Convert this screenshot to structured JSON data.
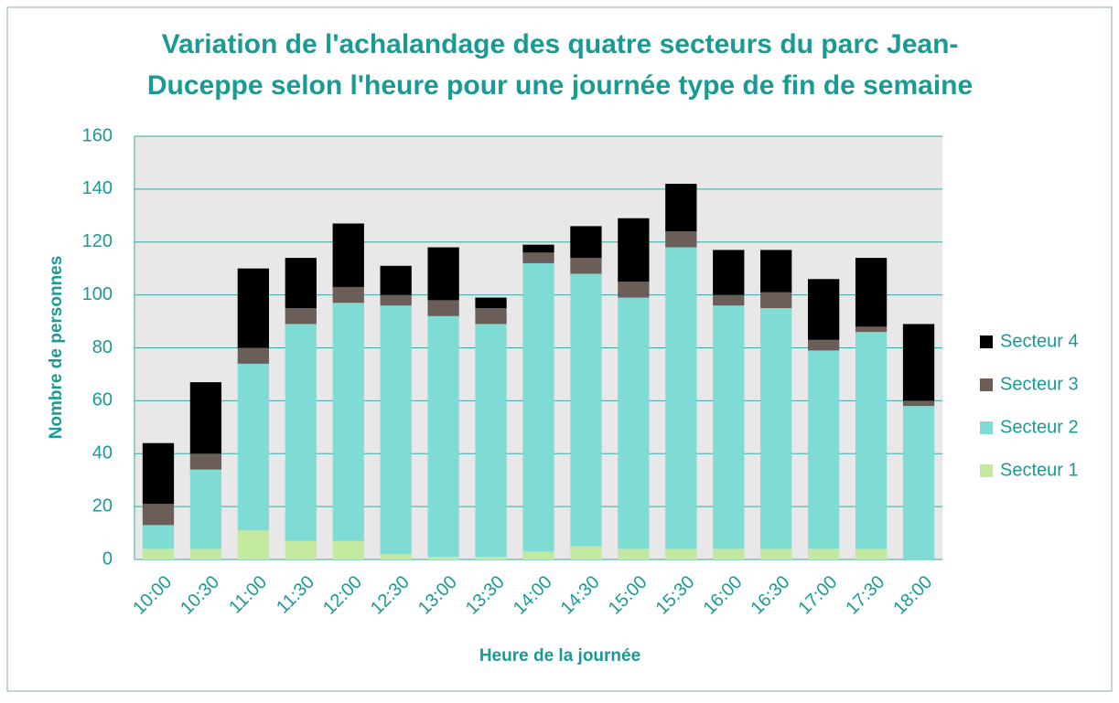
{
  "chart_data": {
    "type": "stacked_bar",
    "title": "Variation de l'achalandage des quatre secteurs du parc Jean-Duceppe selon l'heure pour une journée type de fin de semaine",
    "xlabel": "Heure de la journée",
    "ylabel": "Nombre de personnes",
    "categories": [
      "10:00",
      "10:30",
      "11:00",
      "11:30",
      "12:00",
      "12:30",
      "13:00",
      "13:30",
      "14:00",
      "14:30",
      "15:00",
      "15:30",
      "16:00",
      "16:30",
      "17:00",
      "17:30",
      "18:00"
    ],
    "series": [
      {
        "name": "Secteur 1",
        "color": "#c3e9a0",
        "values": [
          4,
          4,
          11,
          7,
          7,
          2,
          1,
          1,
          3,
          5,
          4,
          4,
          4,
          4,
          4,
          4,
          0
        ]
      },
      {
        "name": "Secteur 2",
        "color": "#7fdcd5",
        "values": [
          9,
          30,
          63,
          82,
          90,
          94,
          91,
          88,
          109,
          103,
          95,
          114,
          92,
          91,
          75,
          82,
          58
        ]
      },
      {
        "name": "Secteur 3",
        "color": "#6b5d57",
        "values": [
          8,
          6,
          6,
          6,
          6,
          4,
          6,
          6,
          4,
          6,
          6,
          6,
          4,
          6,
          4,
          2,
          2
        ]
      },
      {
        "name": "Secteur 4",
        "color": "#000000",
        "values": [
          23,
          27,
          30,
          19,
          24,
          11,
          20,
          4,
          3,
          12,
          24,
          18,
          17,
          16,
          23,
          26,
          29
        ]
      }
    ],
    "ylim": [
      0,
      160
    ],
    "yticks": [
      0,
      20,
      40,
      60,
      80,
      100,
      120,
      140,
      160
    ],
    "grid": true,
    "legend": "right"
  }
}
